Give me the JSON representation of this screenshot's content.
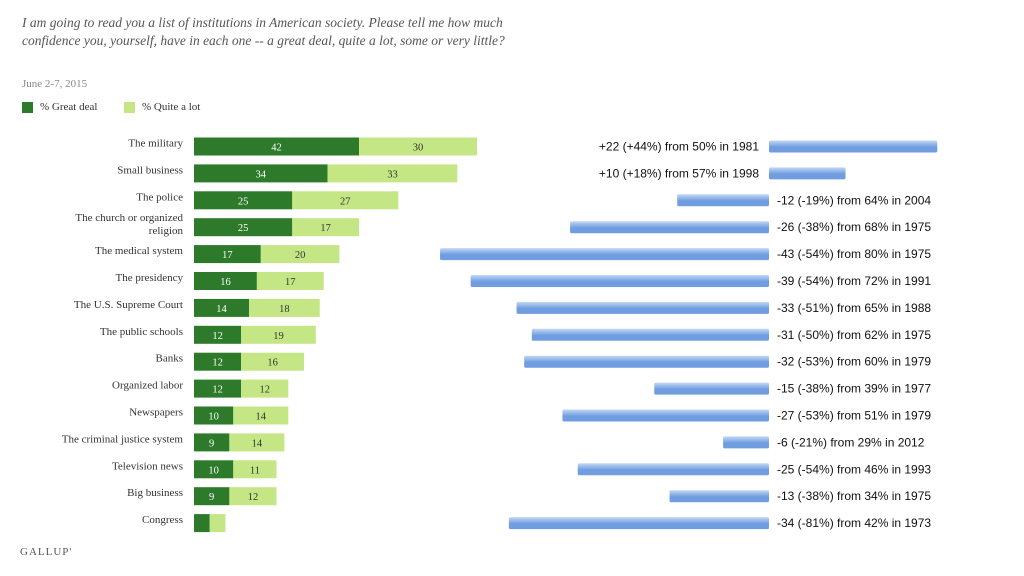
{
  "title": "I am going to read you a list of institutions in American society. Please tell me how much confidence you, yourself, have in each one -- a great deal, quite a lot, some or very little?",
  "date": "June 2-7, 2015",
  "logo": "GALLUP'",
  "colors": {
    "great_deal": "#2d7a2b",
    "quite_a_lot": "#c5e685",
    "change_bar": "#6f9de0",
    "change_bar_light": "#c3d8f6"
  },
  "legend": [
    {
      "label": "% Great deal",
      "color": "#2d7a2b"
    },
    {
      "label": "% Quite a lot",
      "color": "#c5e685"
    }
  ],
  "chart_data": [
    {
      "type": "bar",
      "orientation": "horizontal",
      "stacked": true,
      "categories": [
        "The military",
        "Small business",
        "The police",
        "The church or organized religion",
        "The medical system",
        "The presidency",
        "The U.S. Supreme Court",
        "The public schools",
        "Banks",
        "Organized labor",
        "Newspapers",
        "The criminal justice system",
        "Television news",
        "Big business",
        "Congress"
      ],
      "category_lines": [
        [
          "The military"
        ],
        [
          "Small business"
        ],
        [
          "The police"
        ],
        [
          "The church or organized",
          "religion"
        ],
        [
          "The medical system"
        ],
        [
          "The presidency"
        ],
        [
          "The U.S. Supreme Court"
        ],
        [
          "The public schools"
        ],
        [
          "Banks"
        ],
        [
          "Organized labor"
        ],
        [
          "Newspapers"
        ],
        [
          "The criminal justice system"
        ],
        [
          "Television news"
        ],
        [
          "Big business"
        ],
        [
          "Congress"
        ]
      ],
      "series": [
        {
          "name": "% Great deal",
          "values": [
            42,
            34,
            25,
            25,
            17,
            16,
            14,
            12,
            12,
            12,
            10,
            9,
            10,
            9,
            4
          ]
        },
        {
          "name": "% Quite a lot",
          "values": [
            30,
            33,
            27,
            17,
            20,
            17,
            18,
            19,
            16,
            12,
            14,
            14,
            11,
            12,
            4
          ]
        }
      ],
      "value_labels": [
        [
          "42",
          "34",
          "25",
          "25",
          "17",
          "16",
          "14",
          "12",
          "12",
          "12",
          "10",
          "9",
          "10",
          "9",
          ""
        ],
        [
          "30",
          "33",
          "27",
          "17",
          "20",
          "17",
          "18",
          "19",
          "16",
          "12",
          "14",
          "14",
          "11",
          "12",
          ""
        ]
      ]
    },
    {
      "type": "bar",
      "orientation": "horizontal",
      "diverging": true,
      "values": [
        22,
        10,
        -12,
        -26,
        -43,
        -39,
        -33,
        -31,
        -32,
        -15,
        -27,
        -6,
        -25,
        -13,
        -34
      ],
      "labels": [
        "+22 (+44%) from 50% in 1981",
        "+10 (+18%) from 57% in 1998",
        "-12 (-19%) from 64% in 2004",
        "-26 (-38%) from 68% in 1975",
        "-43 (-54%) from 80% in 1975",
        "-39 (-54%) from 72% in 1991",
        "-33 (-51%) from 65% in 1988",
        "-31 (-50%) from 62% in 1975",
        "-32 (-53%) from 60% in 1979",
        "-15 (-38%) from 39% in 1977",
        "-27 (-53%) from 51% in 1979",
        "-6 (-21%) from 29% in 2012",
        "-25 (-54%) from 46% in 1993",
        "-13 (-38%) from 34% in 1975",
        "-34 (-81%) from 42% in 1973"
      ]
    }
  ]
}
